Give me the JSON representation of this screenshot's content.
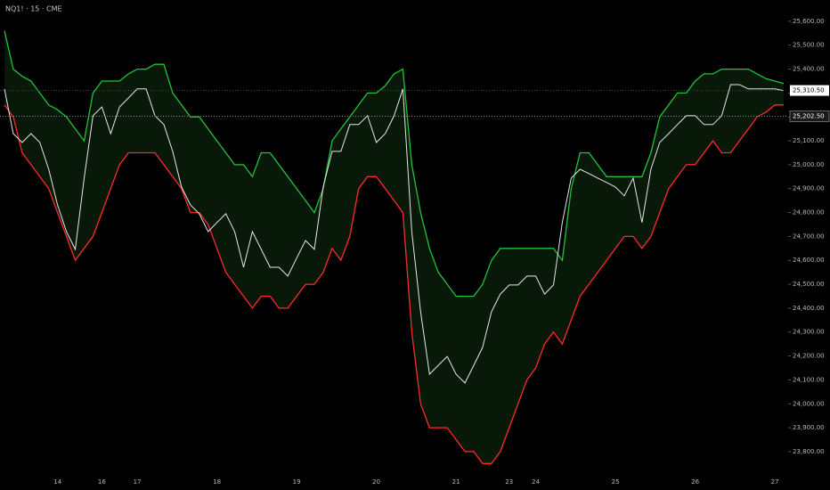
{
  "chart_data": {
    "type": "line",
    "title": "NQ1! · 15 · CME",
    "categories": [
      null,
      null,
      null,
      null,
      null,
      null,
      "14",
      null,
      null,
      null,
      null,
      "16",
      null,
      null,
      null,
      "17",
      null,
      null,
      null,
      null,
      null,
      null,
      null,
      null,
      "18",
      null,
      null,
      null,
      null,
      null,
      null,
      null,
      null,
      "19",
      null,
      null,
      null,
      null,
      null,
      null,
      null,
      null,
      "20",
      null,
      null,
      null,
      null,
      null,
      null,
      null,
      null,
      "21",
      null,
      null,
      null,
      null,
      null,
      "23",
      null,
      null,
      "24",
      null,
      null,
      null,
      null,
      null,
      null,
      null,
      null,
      "25",
      null,
      null,
      null,
      null,
      null,
      null,
      null,
      null,
      "26",
      null,
      null,
      null,
      null,
      null,
      null,
      null,
      null,
      "27",
      null
    ],
    "series": [
      {
        "color": "#22c33a",
        "values": [
          25560,
          25400,
          25370,
          25350,
          25300,
          25250,
          25230,
          25200,
          25150,
          25100,
          25300,
          25350,
          25350,
          25350,
          25380,
          25400,
          25400,
          25420,
          25420,
          25300,
          25250,
          25200,
          25200,
          25150,
          25100,
          25050,
          25000,
          25000,
          24950,
          25050,
          25050,
          25000,
          24950,
          24900,
          24850,
          24800,
          24900,
          25100,
          25150,
          25200,
          25250,
          25300,
          25300,
          25330,
          25380,
          25400,
          25000,
          24800,
          24650,
          24550,
          24500,
          24450,
          24450,
          24450,
          24500,
          24600,
          24650,
          24650,
          24650,
          24650,
          24650,
          24650,
          24650,
          24600,
          24900,
          25050,
          25050,
          25000,
          24950,
          24950,
          24950,
          24950,
          24950,
          25050,
          25200,
          25250,
          25300,
          25300,
          25350,
          25380,
          25380,
          25400,
          25400,
          25400,
          25400,
          25380,
          25360,
          25350,
          25340
        ]
      },
      {
        "color": "#ff2a2a",
        "values": [
          25250,
          25200,
          25050,
          25000,
          24950,
          24900,
          24800,
          24700,
          24600,
          24650,
          24700,
          24800,
          24900,
          25000,
          25050,
          25050,
          25050,
          25050,
          25000,
          24950,
          24900,
          24800,
          24800,
          24750,
          24650,
          24550,
          24500,
          24450,
          24400,
          24450,
          24450,
          24400,
          24400,
          24450,
          24500,
          24500,
          24550,
          24650,
          24600,
          24700,
          24900,
          24950,
          24950,
          24900,
          24850,
          24800,
          24300,
          24000,
          23900,
          23900,
          23900,
          23850,
          23800,
          23800,
          23750,
          23750,
          23800,
          23900,
          24000,
          24100,
          24150,
          24250,
          24300,
          24250,
          24350,
          24450,
          24500,
          24550,
          24600,
          24650,
          24700,
          24700,
          24650,
          24700,
          24800,
          24900,
          24950,
          25000,
          25000,
          25050,
          25100,
          25050,
          25050,
          25100,
          25150,
          25200,
          25220,
          25250,
          25250
        ]
      },
      {
        "color": "#e6e6e6",
        "values": [
          25317,
          25130,
          25093,
          25130,
          25093,
          24981,
          24832,
          24720,
          24646,
          24944,
          25205,
          25242,
          25130,
          25242,
          25279,
          25317,
          25317,
          25205,
          25168,
          25056,
          24907,
          24832,
          24795,
          24720,
          24758,
          24795,
          24720,
          24571,
          24720,
          24646,
          24571,
          24571,
          24534,
          24609,
          24683,
          24646,
          24907,
          25056,
          25056,
          25168,
          25168,
          25205,
          25093,
          25130,
          25205,
          25317,
          24720,
          24385,
          24124,
          24161,
          24198,
          24124,
          24087,
          24161,
          24236,
          24385,
          24459,
          24497,
          24497,
          24534,
          24534,
          24459,
          24497,
          24758,
          24944,
          24981,
          24963,
          24944,
          24926,
          24907,
          24870,
          24944,
          24758,
          24981,
          25093,
          25130,
          25168,
          25205,
          25205,
          25168,
          25168,
          25205,
          25335,
          25335,
          25317,
          25317,
          25317,
          25317,
          25310
        ]
      }
    ],
    "ylim": [
      23714,
      25689
    ],
    "yticks": [
      {
        "value": 23800,
        "label": "23,800.00"
      },
      {
        "value": 23900,
        "label": "23,900.00"
      },
      {
        "value": 24000,
        "label": "24,000.00"
      },
      {
        "value": 24100,
        "label": "24,100.00"
      },
      {
        "value": 24200,
        "label": "24,200.00"
      },
      {
        "value": 24300,
        "label": "24,300.00"
      },
      {
        "value": 24400,
        "label": "24,400.00"
      },
      {
        "value": 24500,
        "label": "24,500.00"
      },
      {
        "value": 24600,
        "label": "24,600.00"
      },
      {
        "value": 24700,
        "label": "24,700.00"
      },
      {
        "value": 24800,
        "label": "24,800.00"
      },
      {
        "value": 24900,
        "label": "24,900.00"
      },
      {
        "value": 25000,
        "label": "25,000.00"
      },
      {
        "value": 25100,
        "label": "25,100.00"
      },
      {
        "value": 25200,
        "label": "25,200.00"
      },
      {
        "value": 25300,
        "label": "25,300.00"
      },
      {
        "value": 25400,
        "label": "25,400.00"
      },
      {
        "value": 25500,
        "label": "25,500.00"
      },
      {
        "value": 25600,
        "label": "25,600.00"
      }
    ],
    "last_price": {
      "value": 25310.5,
      "label": "25,310.50"
    },
    "crosshair": {
      "value": 25202.5,
      "label": "25,202.50"
    },
    "grid": false
  }
}
